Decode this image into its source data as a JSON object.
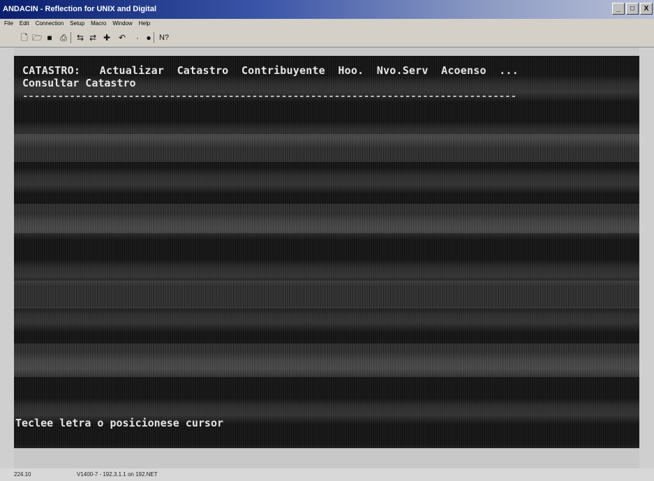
{
  "window": {
    "title": "ANDACIN - Reflection for UNIX and Digital",
    "controls": [
      "_",
      "□",
      "X"
    ]
  },
  "menubar": [
    "File",
    "Edit",
    "Connection",
    "Setup",
    "Macro",
    "Window",
    "Help"
  ],
  "toolbar": {
    "icons": [
      "new-icon",
      "open-icon",
      "save-icon",
      "print-icon",
      "connect-icon",
      "disconnect-icon",
      "send-icon",
      "undo-icon",
      "record-icon",
      "play-icon",
      "help-icon"
    ],
    "help_label": "N?"
  },
  "terminal": {
    "line1_label": "CATASTRO:",
    "menu_items": [
      "Actualizar",
      "Catastro",
      "Contribuyente",
      "Hoo.",
      "Nvo.Serv",
      "Acoenso",
      "..."
    ],
    "line2": "Consultar Catastro",
    "separator": "------------------------------------------------------------------------------------",
    "prompt": "Teclee letra o posicionese cursor"
  },
  "statusbar": {
    "left": "224.10",
    "center": "V1400-7 - 192.3.1.1 on 192.NET"
  },
  "colors": {
    "terminal_bg": "#151515",
    "terminal_fg": "#e6e6e6",
    "titlebar_start": "#0a1f6e"
  }
}
